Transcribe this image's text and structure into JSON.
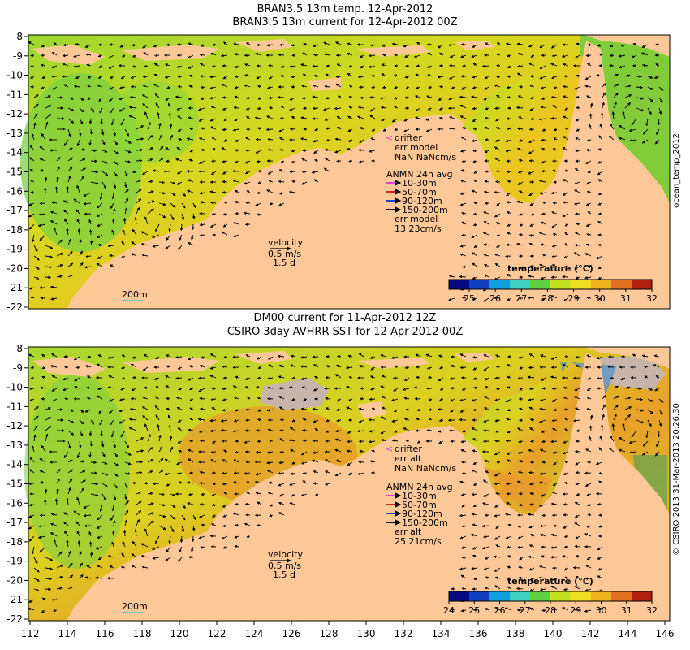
{
  "panels": [
    {
      "title_line1": "BRAN3.5 13m temp. 12-Apr-2012",
      "title_line2": "BRAN3.5 13m current for 12-Apr-2012 00Z",
      "legend": {
        "drifter": "drifter",
        "err_label": "err model",
        "err_value": "NaN NaNcm/s",
        "anmn_title": "ANMN 24h avg",
        "bins": [
          "10-30m",
          "50-70m",
          "90-120m",
          "150-200m"
        ],
        "err_label2": "err model",
        "err_value2": "13 23cm/s"
      },
      "velocity": {
        "label": "velocity",
        "speed": "0.5 m/s",
        "time": "1.5 d"
      },
      "depth_contour": "200m",
      "colorbar": {
        "title": "temperature (°C)",
        "ticks": [
          "25",
          "26",
          "27",
          "28",
          "29",
          "30",
          "31",
          "32"
        ]
      }
    },
    {
      "title_line1": "DM00 current for 11-Apr-2012 12Z",
      "title_line2": "CSIRO 3day AVHRR SST for 12-Apr-2012 00Z",
      "legend": {
        "drifter": "drifter",
        "err_label": "err alt",
        "err_value": "NaN NaNcm/s",
        "anmn_title": "ANMN 24h avg",
        "bins": [
          "10-30m",
          "50-70m",
          "90-120m",
          "150-200m"
        ],
        "err_label2": "err alt",
        "err_value2": "25 21cm/s"
      },
      "velocity": {
        "label": "velocity",
        "speed": "0.5 m/s",
        "time": "1.5 d"
      },
      "depth_contour": "200m",
      "colorbar": {
        "title": "temperature (°C)",
        "ticks": [
          "24",
          "25",
          "26",
          "27",
          "28",
          "29",
          "30",
          "31",
          "32"
        ]
      }
    }
  ],
  "y_ticks": [
    "-8",
    "-9",
    "-10",
    "-11",
    "-12",
    "-13",
    "-14",
    "-15",
    "-16",
    "-17",
    "-18",
    "-19",
    "-20",
    "-21",
    "-22"
  ],
  "x_ticks": [
    "112",
    "114",
    "116",
    "118",
    "120",
    "122",
    "124",
    "126",
    "128",
    "130",
    "132",
    "134",
    "136",
    "138",
    "140",
    "142",
    "144",
    "146"
  ],
  "side_labels": {
    "top": "ocean_temp_2012",
    "bottom": "© CSIRO 2013  31-Mar-2013 20:26:30"
  },
  "colors": {
    "land": "#fcc898",
    "ocean_warm": "#e8d020",
    "ocean_mid": "#c8dc28",
    "ocean_cool": "#6cd040",
    "cloud": "#c8b4a8"
  }
}
